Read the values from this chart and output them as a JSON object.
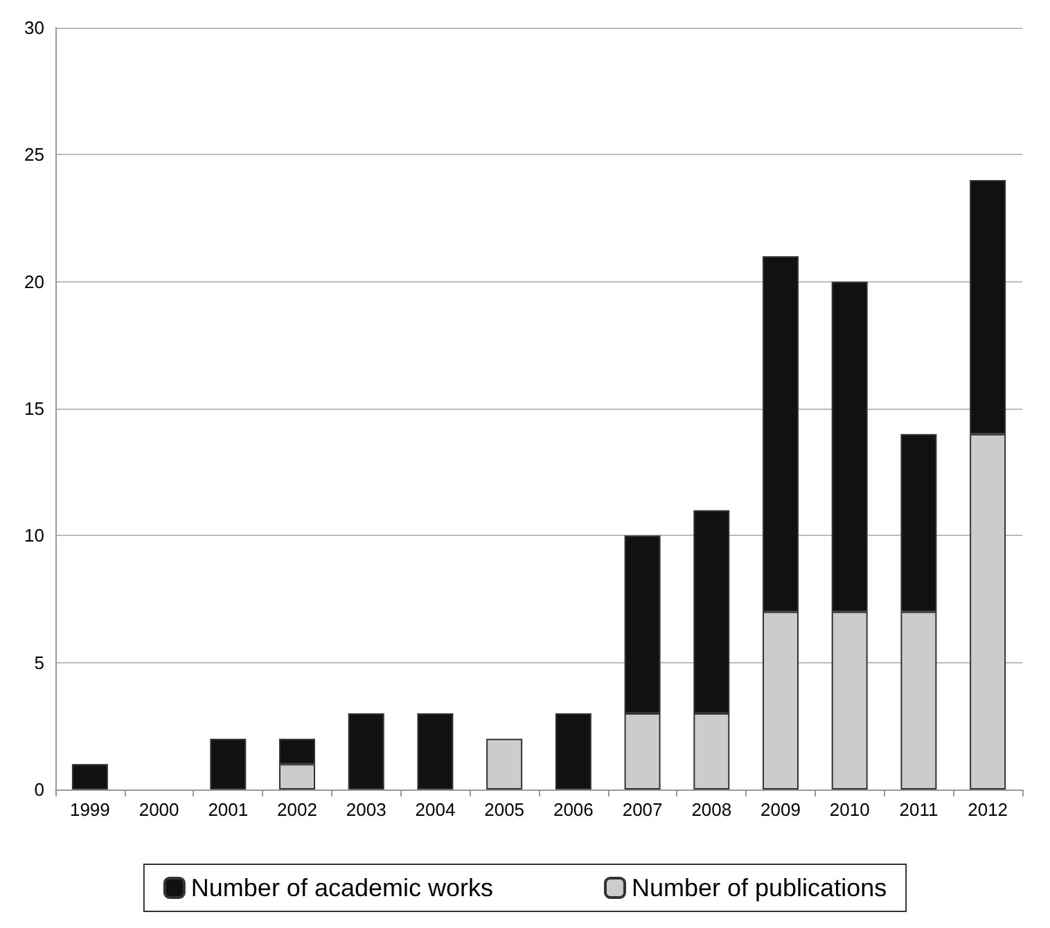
{
  "chart_data": {
    "type": "bar",
    "stacked": true,
    "categories": [
      "1999",
      "2000",
      "2001",
      "2002",
      "2003",
      "2004",
      "2005",
      "2006",
      "2007",
      "2008",
      "2009",
      "2010",
      "2011",
      "2012"
    ],
    "series": [
      {
        "name": "Number of publications",
        "color": "#cccccc",
        "values": [
          0,
          0,
          0,
          1,
          0,
          0,
          2,
          0,
          3,
          3,
          7,
          7,
          7,
          14
        ]
      },
      {
        "name": "Number of academic works",
        "color": "#111111",
        "values": [
          1,
          0,
          2,
          1,
          3,
          3,
          0,
          3,
          7,
          8,
          14,
          13,
          7,
          10
        ]
      }
    ],
    "ylim": [
      0,
      30
    ],
    "yticks": [
      0,
      5,
      10,
      15,
      20,
      25,
      30
    ],
    "grid": "y",
    "legend": "bottom"
  }
}
